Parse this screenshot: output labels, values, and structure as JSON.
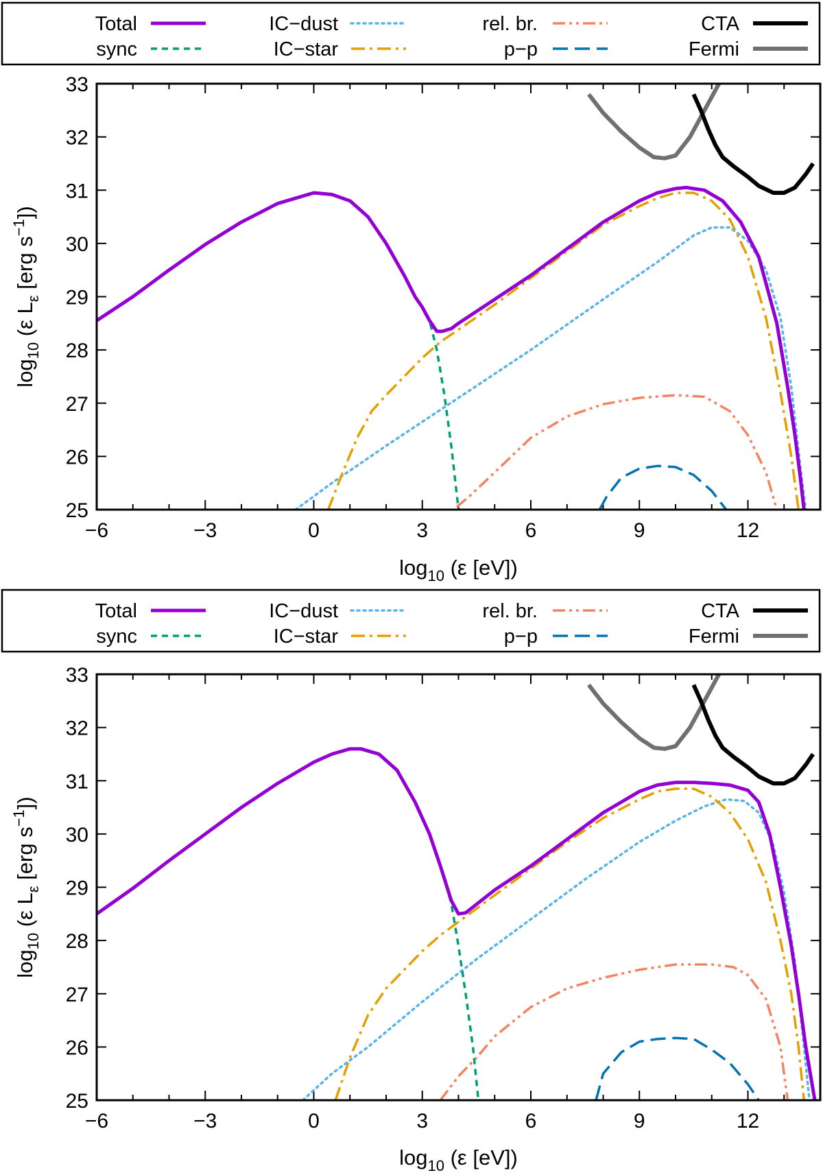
{
  "legend": {
    "entries": [
      {
        "key": "total",
        "label": "Total",
        "color": "#9400d3",
        "style": "solid"
      },
      {
        "key": "sync",
        "label": "sync",
        "color": "#009e73",
        "style": "dashed"
      },
      {
        "key": "ic_dust",
        "label": "IC−dust",
        "color": "#56b4e9",
        "style": "dotted"
      },
      {
        "key": "ic_star",
        "label": "IC−star",
        "color": "#e69f00",
        "style": "dashdot"
      },
      {
        "key": "rel_br",
        "label": "rel. br.",
        "color": "#f4845f",
        "style": "dashdotdot"
      },
      {
        "key": "pp",
        "label": "p−p",
        "color": "#0072b2",
        "style": "longdash"
      },
      {
        "key": "cta",
        "label": "CTA",
        "color": "#000000",
        "style": "solid"
      },
      {
        "key": "fermi",
        "label": "Fermi",
        "color": "#707070",
        "style": "solid"
      }
    ]
  },
  "chart_data": [
    {
      "type": "line",
      "title": "",
      "xlabel": {
        "pre": "log",
        "sub": "10",
        "post": " (ε [eV])"
      },
      "ylabel": {
        "pre": "log",
        "sub": "10",
        "mid": " (ε L",
        "sub2": "ε",
        "mid2": " [erg s",
        "sup": "−1",
        "post": "])"
      },
      "xlim": [
        -6,
        14
      ],
      "ylim": [
        25,
        33
      ],
      "xticks": [
        -6,
        -3,
        0,
        3,
        6,
        9,
        12
      ],
      "xtick_labels": [
        "−6",
        "−3",
        "0",
        "3",
        "6",
        "9",
        "12"
      ],
      "yticks": [
        25,
        26,
        27,
        28,
        29,
        30,
        31,
        32,
        33
      ],
      "ytick_labels": [
        "25",
        "26",
        "27",
        "28",
        "29",
        "30",
        "31",
        "32",
        "33"
      ],
      "series": [
        {
          "name": "Fermi",
          "key": "fermi",
          "x": [
            7.6,
            8.0,
            8.5,
            9.0,
            9.4,
            9.7,
            10.0,
            10.4,
            10.8,
            11.2
          ],
          "y": [
            32.8,
            32.45,
            32.1,
            31.8,
            31.62,
            31.6,
            31.65,
            32.0,
            32.5,
            33.0
          ]
        },
        {
          "name": "CTA",
          "key": "cta",
          "x": [
            10.5,
            10.7,
            10.9,
            11.1,
            11.3,
            11.6,
            12.0,
            12.3,
            12.7,
            13.0,
            13.3,
            13.6,
            13.8
          ],
          "y": [
            32.8,
            32.5,
            32.15,
            31.85,
            31.62,
            31.45,
            31.25,
            31.08,
            30.95,
            30.95,
            31.05,
            31.3,
            31.5
          ]
        },
        {
          "name": "rel. br.",
          "key": "rel_br",
          "x": [
            3.95,
            4.3,
            5.0,
            6.0,
            7.0,
            8.0,
            9.0,
            10.0,
            10.8,
            11.5,
            12.0,
            12.5,
            12.8
          ],
          "y": [
            25.05,
            25.25,
            25.7,
            26.35,
            26.75,
            26.98,
            27.1,
            27.15,
            27.12,
            26.85,
            26.4,
            25.7,
            25.0
          ]
        },
        {
          "name": "p−p",
          "key": "pp",
          "x": [
            7.9,
            8.1,
            8.5,
            9.0,
            9.5,
            10.0,
            10.5,
            11.0,
            11.4
          ],
          "y": [
            25.0,
            25.25,
            25.6,
            25.77,
            25.82,
            25.8,
            25.65,
            25.35,
            25.0
          ]
        },
        {
          "name": "IC−dust",
          "key": "ic_dust",
          "x": [
            -0.5,
            0.5,
            2.0,
            4.0,
            6.0,
            8.0,
            9.5,
            10.5,
            11.0,
            11.5,
            12.0,
            12.5,
            12.9,
            13.2,
            13.45,
            13.6
          ],
          "y": [
            25.0,
            25.5,
            26.2,
            27.1,
            28.0,
            28.95,
            29.65,
            30.15,
            30.3,
            30.3,
            30.05,
            29.5,
            28.6,
            27.3,
            25.8,
            25.0
          ]
        },
        {
          "name": "IC−star",
          "key": "ic_star",
          "x": [
            0.4,
            0.8,
            1.2,
            1.6,
            2.0,
            2.5,
            3.0,
            3.5,
            4.0,
            5.0,
            6.0,
            7.0,
            8.0,
            9.0,
            9.5,
            10.0,
            10.5,
            11.0,
            11.5,
            12.0,
            12.5,
            12.9,
            13.2,
            13.4
          ],
          "y": [
            25.0,
            25.7,
            26.35,
            26.85,
            27.15,
            27.5,
            27.85,
            28.15,
            28.38,
            28.85,
            29.35,
            29.85,
            30.35,
            30.7,
            30.85,
            30.95,
            30.95,
            30.8,
            30.45,
            29.75,
            28.6,
            27.2,
            26.0,
            25.0
          ]
        },
        {
          "name": "sync",
          "key": "sync",
          "x": [
            -6,
            -5,
            -4,
            -3,
            -2,
            -1,
            0,
            0.5,
            1.0,
            1.5,
            2.0,
            2.5,
            2.8,
            3.0,
            3.2,
            3.4,
            3.6,
            3.8,
            4.0
          ],
          "y": [
            28.55,
            29.0,
            29.5,
            29.98,
            30.4,
            30.75,
            30.95,
            30.92,
            30.8,
            30.5,
            30.0,
            29.4,
            29.0,
            28.8,
            28.55,
            28.0,
            27.2,
            26.2,
            25.0
          ]
        },
        {
          "name": "Total",
          "key": "total",
          "x": [
            -6,
            -5,
            -4,
            -3,
            -2,
            -1,
            0,
            0.5,
            1.0,
            1.5,
            2.0,
            2.5,
            2.8,
            3.0,
            3.2,
            3.4,
            3.55,
            3.8,
            4.0,
            5.0,
            6.0,
            7.0,
            8.0,
            9.0,
            9.5,
            10.0,
            10.3,
            10.8,
            11.3,
            11.8,
            12.3,
            12.8,
            13.1,
            13.3,
            13.45,
            13.55
          ],
          "y": [
            28.55,
            29.0,
            29.5,
            29.98,
            30.4,
            30.75,
            30.95,
            30.92,
            30.8,
            30.5,
            30.0,
            29.4,
            29.0,
            28.8,
            28.55,
            28.35,
            28.35,
            28.4,
            28.5,
            28.95,
            29.4,
            29.9,
            30.4,
            30.8,
            30.95,
            31.03,
            31.05,
            31.0,
            30.8,
            30.4,
            29.75,
            28.5,
            27.3,
            26.4,
            25.6,
            25.0
          ]
        }
      ]
    },
    {
      "type": "line",
      "title": "",
      "xlabel": {
        "pre": "log",
        "sub": "10",
        "post": " (ε [eV])"
      },
      "ylabel": {
        "pre": "log",
        "sub": "10",
        "mid": " (ε L",
        "sub2": "ε",
        "mid2": " [erg s",
        "sup": "−1",
        "post": "])"
      },
      "xlim": [
        -6,
        14
      ],
      "ylim": [
        25,
        33
      ],
      "xticks": [
        -6,
        -3,
        0,
        3,
        6,
        9,
        12
      ],
      "xtick_labels": [
        "−6",
        "−3",
        "0",
        "3",
        "6",
        "9",
        "12"
      ],
      "yticks": [
        25,
        26,
        27,
        28,
        29,
        30,
        31,
        32,
        33
      ],
      "ytick_labels": [
        "25",
        "26",
        "27",
        "28",
        "29",
        "30",
        "31",
        "32",
        "33"
      ],
      "series": [
        {
          "name": "Fermi",
          "key": "fermi",
          "x": [
            7.6,
            8.0,
            8.5,
            9.0,
            9.4,
            9.7,
            10.0,
            10.4,
            10.8,
            11.2
          ],
          "y": [
            32.8,
            32.45,
            32.1,
            31.8,
            31.62,
            31.6,
            31.65,
            32.0,
            32.5,
            33.0
          ]
        },
        {
          "name": "CTA",
          "key": "cta",
          "x": [
            10.5,
            10.7,
            10.9,
            11.1,
            11.3,
            11.6,
            12.0,
            12.3,
            12.7,
            13.0,
            13.3,
            13.6,
            13.8
          ],
          "y": [
            32.8,
            32.5,
            32.15,
            31.85,
            31.62,
            31.45,
            31.25,
            31.08,
            30.95,
            30.95,
            31.05,
            31.3,
            31.5
          ]
        },
        {
          "name": "rel. br.",
          "key": "rel_br",
          "x": [
            3.5,
            4.0,
            4.5,
            5.0,
            6.0,
            7.0,
            8.0,
            9.0,
            10.0,
            11.0,
            11.6,
            12.0,
            12.5,
            12.9,
            13.1
          ],
          "y": [
            25.0,
            25.45,
            25.8,
            26.2,
            26.75,
            27.1,
            27.3,
            27.45,
            27.55,
            27.55,
            27.5,
            27.35,
            26.9,
            26.0,
            25.0
          ]
        },
        {
          "name": "p−p",
          "key": "pp",
          "x": [
            7.8,
            8.0,
            8.5,
            9.0,
            9.5,
            10.0,
            10.5,
            11.0,
            11.5,
            12.0,
            12.3
          ],
          "y": [
            25.0,
            25.5,
            25.9,
            26.1,
            26.15,
            26.17,
            26.15,
            25.95,
            25.7,
            25.3,
            25.0
          ]
        },
        {
          "name": "IC−dust",
          "key": "ic_dust",
          "x": [
            -0.3,
            0.5,
            1.5,
            3.0,
            4.5,
            6.0,
            7.5,
            9.0,
            10.0,
            10.8,
            11.4,
            11.9,
            12.3,
            12.7,
            13.0,
            13.3,
            13.55,
            13.7
          ],
          "y": [
            25.0,
            25.5,
            26.0,
            26.85,
            27.65,
            28.4,
            29.15,
            29.85,
            30.25,
            30.52,
            30.65,
            30.62,
            30.4,
            29.8,
            28.9,
            27.6,
            26.0,
            25.0
          ]
        },
        {
          "name": "IC−star",
          "key": "ic_star",
          "x": [
            0.6,
            1.0,
            1.5,
            2.0,
            2.5,
            3.0,
            3.5,
            4.0,
            5.0,
            6.0,
            7.0,
            8.0,
            9.0,
            9.5,
            10.0,
            10.5,
            11.0,
            11.5,
            12.0,
            12.5,
            12.9,
            13.2,
            13.4,
            13.55
          ],
          "y": [
            25.0,
            25.8,
            26.6,
            27.1,
            27.45,
            27.8,
            28.1,
            28.35,
            28.85,
            29.35,
            29.85,
            30.3,
            30.65,
            30.8,
            30.85,
            30.85,
            30.7,
            30.4,
            29.9,
            29.1,
            28.0,
            27.0,
            26.0,
            25.0
          ]
        },
        {
          "name": "sync",
          "key": "sync",
          "x": [
            -6,
            -5,
            -4,
            -3,
            -2,
            -1,
            0,
            0.5,
            1.0,
            1.3,
            1.8,
            2.3,
            2.8,
            3.2,
            3.5,
            3.8,
            4.0,
            4.2,
            4.4,
            4.55
          ],
          "y": [
            28.5,
            28.98,
            29.5,
            30.0,
            30.5,
            30.95,
            31.35,
            31.5,
            31.6,
            31.6,
            31.5,
            31.2,
            30.6,
            30.0,
            29.4,
            28.7,
            27.9,
            27.0,
            26.0,
            25.0
          ]
        },
        {
          "name": "Total",
          "key": "total",
          "x": [
            -6,
            -5,
            -4,
            -3,
            -2,
            -1,
            0,
            0.5,
            1.0,
            1.3,
            1.8,
            2.3,
            2.8,
            3.2,
            3.5,
            3.8,
            4.0,
            4.2,
            5.0,
            6.0,
            7.0,
            8.0,
            9.0,
            9.5,
            10.0,
            10.5,
            11.0,
            11.5,
            12.0,
            12.3,
            12.6,
            12.9,
            13.2,
            13.4,
            13.6,
            13.75,
            13.85
          ],
          "y": [
            28.5,
            28.98,
            29.5,
            30.0,
            30.5,
            30.95,
            31.35,
            31.5,
            31.6,
            31.6,
            31.5,
            31.2,
            30.6,
            30.0,
            29.4,
            28.75,
            28.5,
            28.52,
            28.95,
            29.4,
            29.9,
            30.4,
            30.8,
            30.92,
            30.97,
            30.97,
            30.95,
            30.92,
            30.82,
            30.6,
            30.0,
            29.0,
            27.9,
            27.0,
            26.0,
            25.4,
            25.0
          ]
        }
      ]
    }
  ]
}
